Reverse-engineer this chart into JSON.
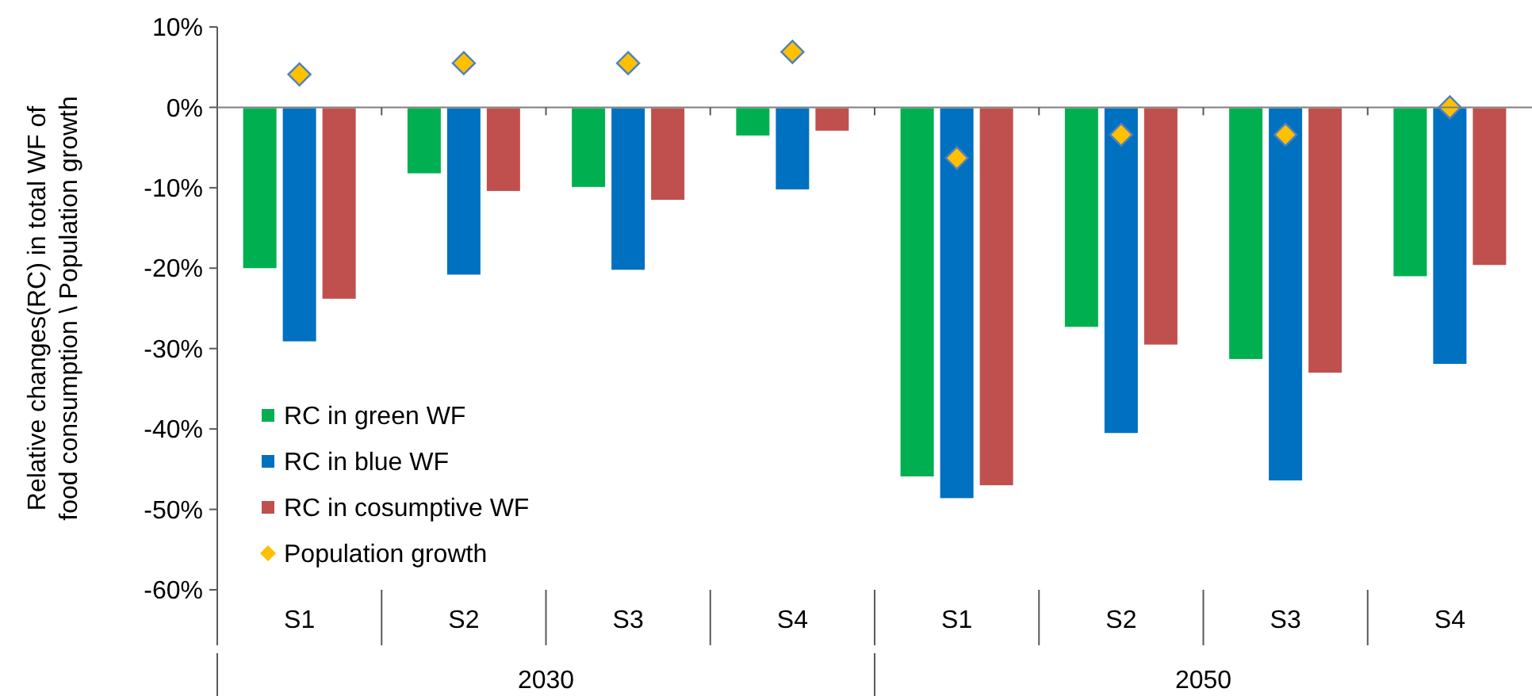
{
  "chart_data": {
    "type": "bar",
    "ylabel": "Relative changes(RC) in total WF of food consumption \\ Population growth",
    "categories": [
      "S1",
      "S2",
      "S3",
      "S4",
      "S1",
      "S2",
      "S3",
      "S4"
    ],
    "annotations": [
      "2030",
      "2050"
    ],
    "series": [
      {
        "name": "RC in green WF",
        "color": "#00b050",
        "values": [
          -20.1,
          -8.3,
          -10,
          -3.6,
          -46,
          -27.4,
          -31.4,
          -21.1
        ]
      },
      {
        "name": "RC in blue WF",
        "color": "#0070c0",
        "values": [
          -29.2,
          -20.9,
          -20.3,
          -10.3,
          -48.7,
          -40.6,
          -46.5,
          -32
        ]
      },
      {
        "name": "RC in cosumptive WF",
        "color": "#c0504d",
        "values": [
          -23.9,
          -10.5,
          -11.6,
          -3,
          -47.1,
          -29.6,
          -33.1,
          -19.7
        ]
      },
      {
        "name": "Population growth",
        "type": "scatter",
        "marker": "diamond",
        "color": "#ffc000",
        "values": [
          4.1,
          5.5,
          5.5,
          6.9,
          -6.3,
          -3.4,
          -3.4,
          0
        ]
      }
    ],
    "ylim": [
      -60,
      10
    ],
    "yticks": [
      {
        "value": 10,
        "label": "10%"
      },
      {
        "value": 0,
        "label": "0%"
      },
      {
        "value": -10,
        "label": "-10%"
      },
      {
        "value": -20,
        "label": "-20%"
      },
      {
        "value": -30,
        "label": "-30%"
      },
      {
        "value": -40,
        "label": "-40%"
      },
      {
        "value": -50,
        "label": "-50%"
      },
      {
        "value": -60,
        "label": "-60%"
      }
    ],
    "legend": "bottom left"
  }
}
